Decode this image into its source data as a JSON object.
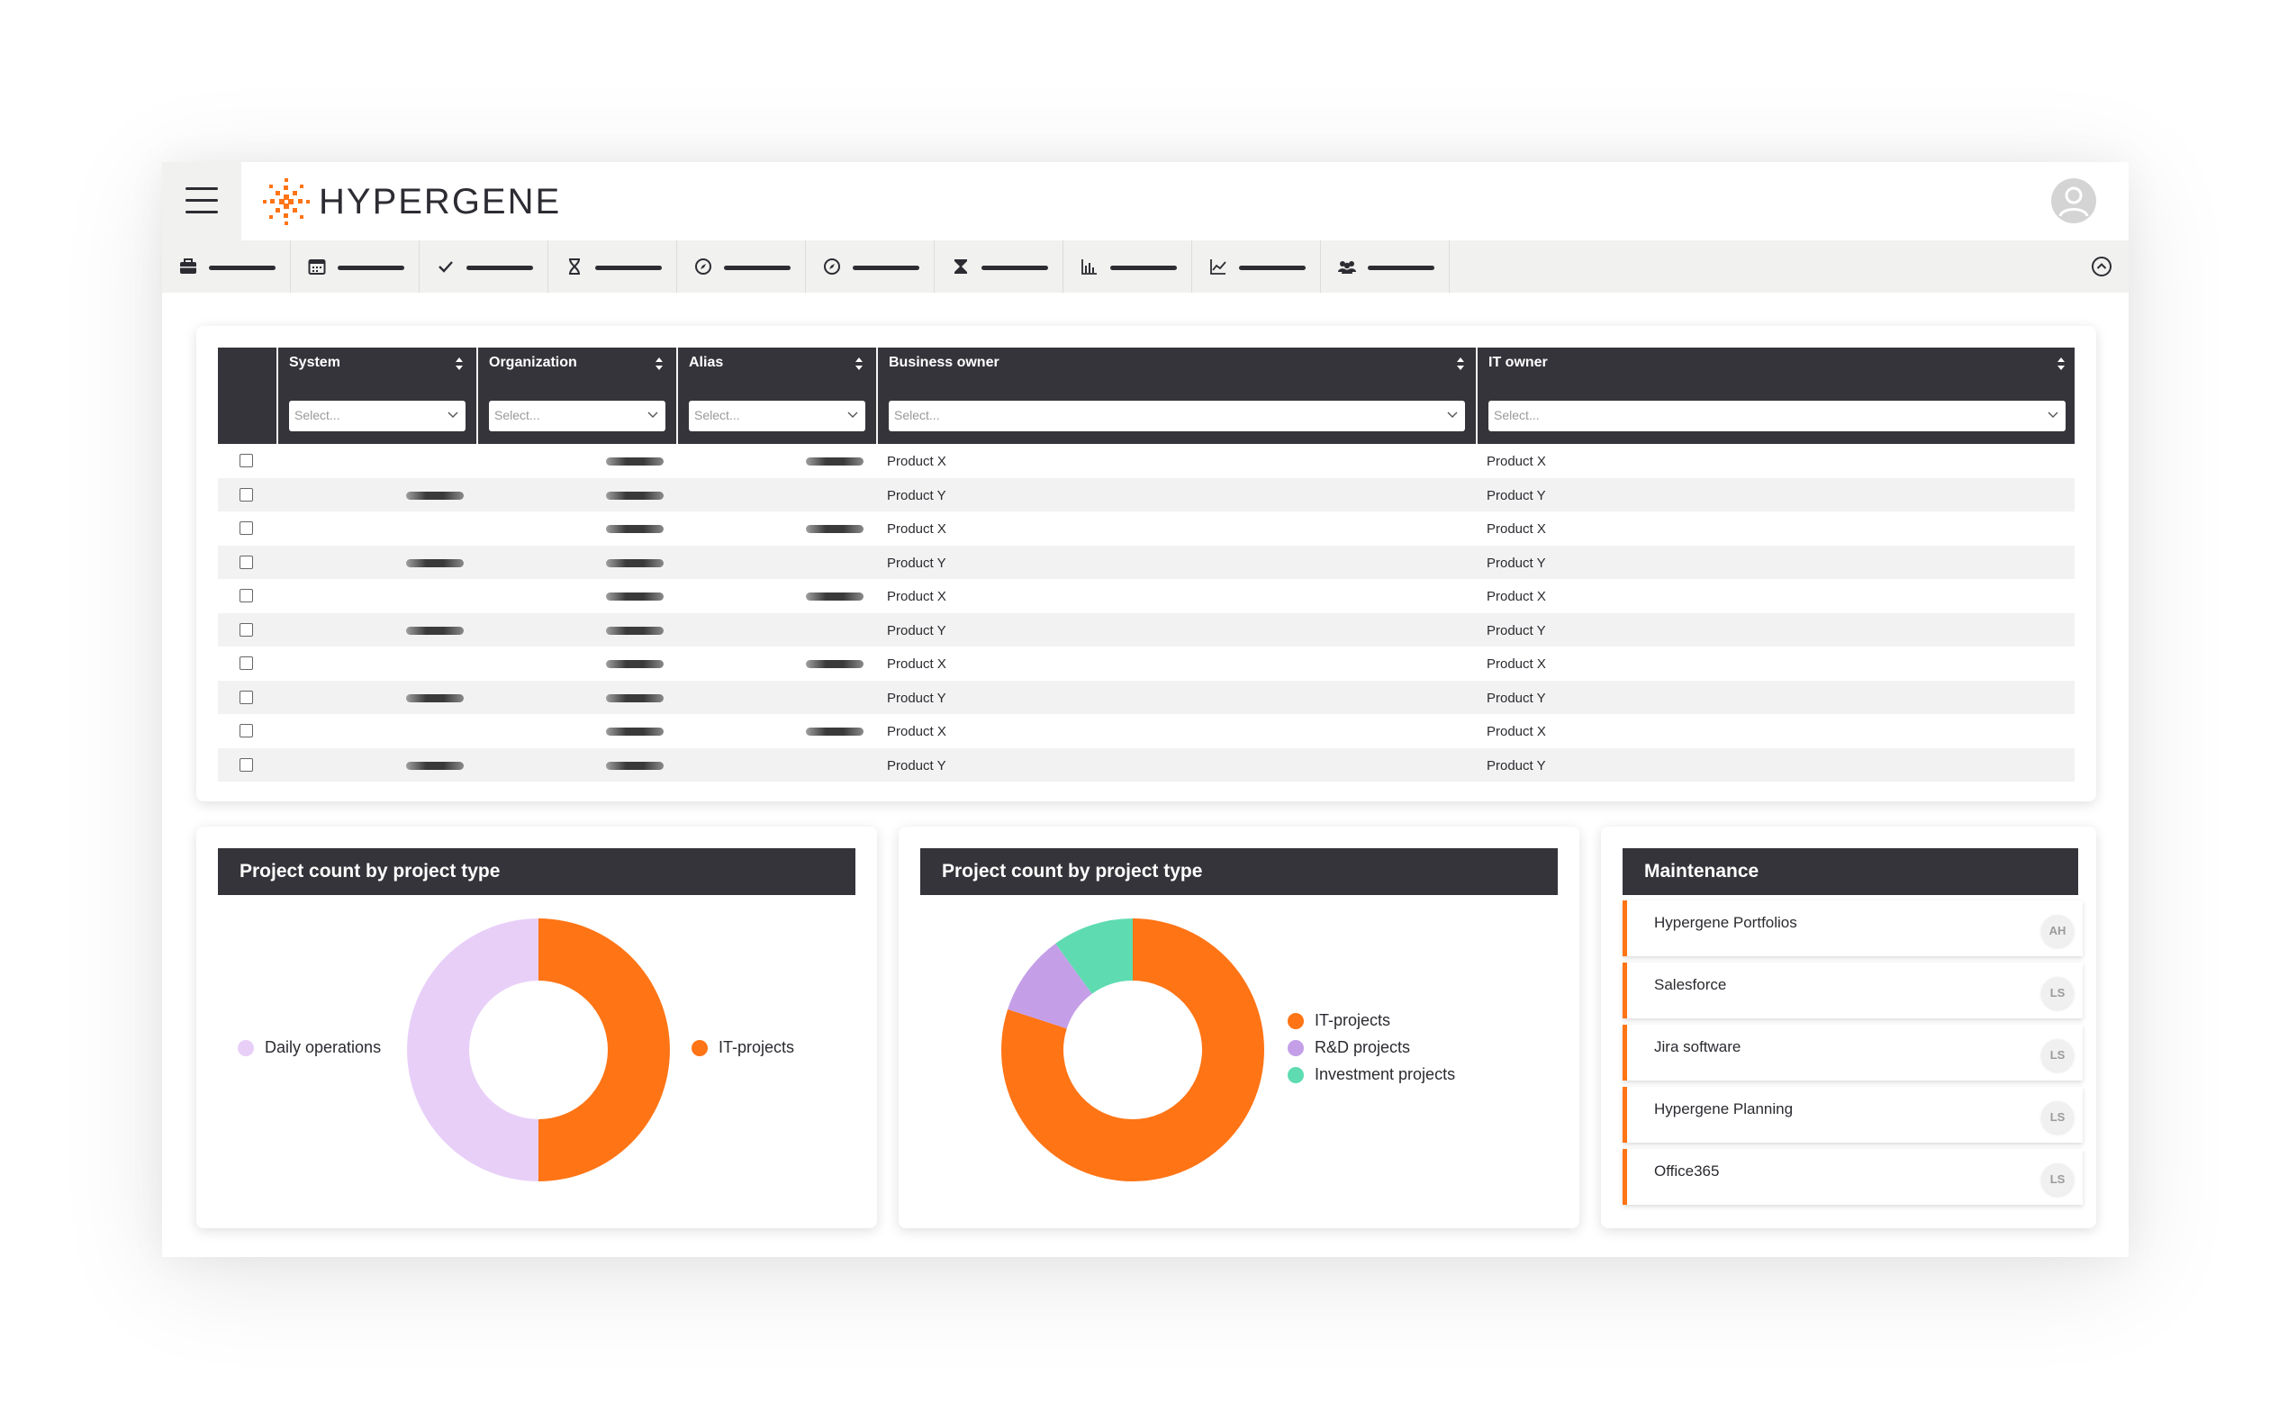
{
  "app": {
    "brand_name": "HYPERGENE",
    "colors": {
      "accent": "#ff7415",
      "dark_header": "#35343a",
      "light_purple": "#e8cff8",
      "purple": "#c49fe8",
      "teal": "#5fdbb1"
    }
  },
  "toolbar": {
    "items": [
      {
        "icon": "briefcase-icon"
      },
      {
        "icon": "calendar-icon"
      },
      {
        "icon": "checkmark-icon"
      },
      {
        "icon": "hourglass-outline-icon"
      },
      {
        "icon": "compass-icon"
      },
      {
        "icon": "compass-icon"
      },
      {
        "icon": "hourglass-filled-icon"
      },
      {
        "icon": "bar-chart-icon"
      },
      {
        "icon": "line-chart-icon"
      },
      {
        "icon": "team-icon"
      }
    ]
  },
  "table": {
    "columns": [
      {
        "label": "System",
        "placeholder": "Select..."
      },
      {
        "label": "Organization",
        "placeholder": "Select..."
      },
      {
        "label": "Alias",
        "placeholder": "Select..."
      },
      {
        "label": "Business owner",
        "placeholder": "Select..."
      },
      {
        "label": "IT owner",
        "placeholder": "Select..."
      }
    ],
    "rows": [
      {
        "business_owner": "Product X",
        "it_owner": "Product X"
      },
      {
        "business_owner": "Product Y",
        "it_owner": "Product Y"
      },
      {
        "business_owner": "Product X",
        "it_owner": "Product X"
      },
      {
        "business_owner": "Product Y",
        "it_owner": "Product Y"
      },
      {
        "business_owner": "Product X",
        "it_owner": "Product X"
      },
      {
        "business_owner": "Product Y",
        "it_owner": "Product Y"
      },
      {
        "business_owner": "Product X",
        "it_owner": "Product X"
      },
      {
        "business_owner": "Product Y",
        "it_owner": "Product Y"
      },
      {
        "business_owner": "Product X",
        "it_owner": "Product X"
      },
      {
        "business_owner": "Product Y",
        "it_owner": "Product Y"
      }
    ]
  },
  "panels": {
    "chart1_title": "Project count by project type",
    "chart2_title": "Project count by project type",
    "maintenance_title": "Maintenance"
  },
  "chart_data": [
    {
      "type": "pie",
      "title": "Project count by project type",
      "donut": true,
      "categories": [
        "IT-projects",
        "Daily operations"
      ],
      "values": [
        50,
        50
      ],
      "colors": [
        "#ff7415",
        "#e8cff8"
      ]
    },
    {
      "type": "pie",
      "title": "Project count by project type",
      "donut": true,
      "categories": [
        "IT-projects",
        "R&D projects",
        "Investment projects"
      ],
      "values": [
        80,
        10,
        10
      ],
      "colors": [
        "#ff7415",
        "#c49fe8",
        "#5fdbb1"
      ]
    }
  ],
  "maintenance": {
    "items": [
      {
        "name": "Hypergene Portfolios",
        "initials": "AH"
      },
      {
        "name": "Salesforce",
        "initials": "LS"
      },
      {
        "name": "Jira software",
        "initials": "LS"
      },
      {
        "name": "Hypergene Planning",
        "initials": "LS"
      },
      {
        "name": "Office365",
        "initials": "LS"
      }
    ]
  }
}
